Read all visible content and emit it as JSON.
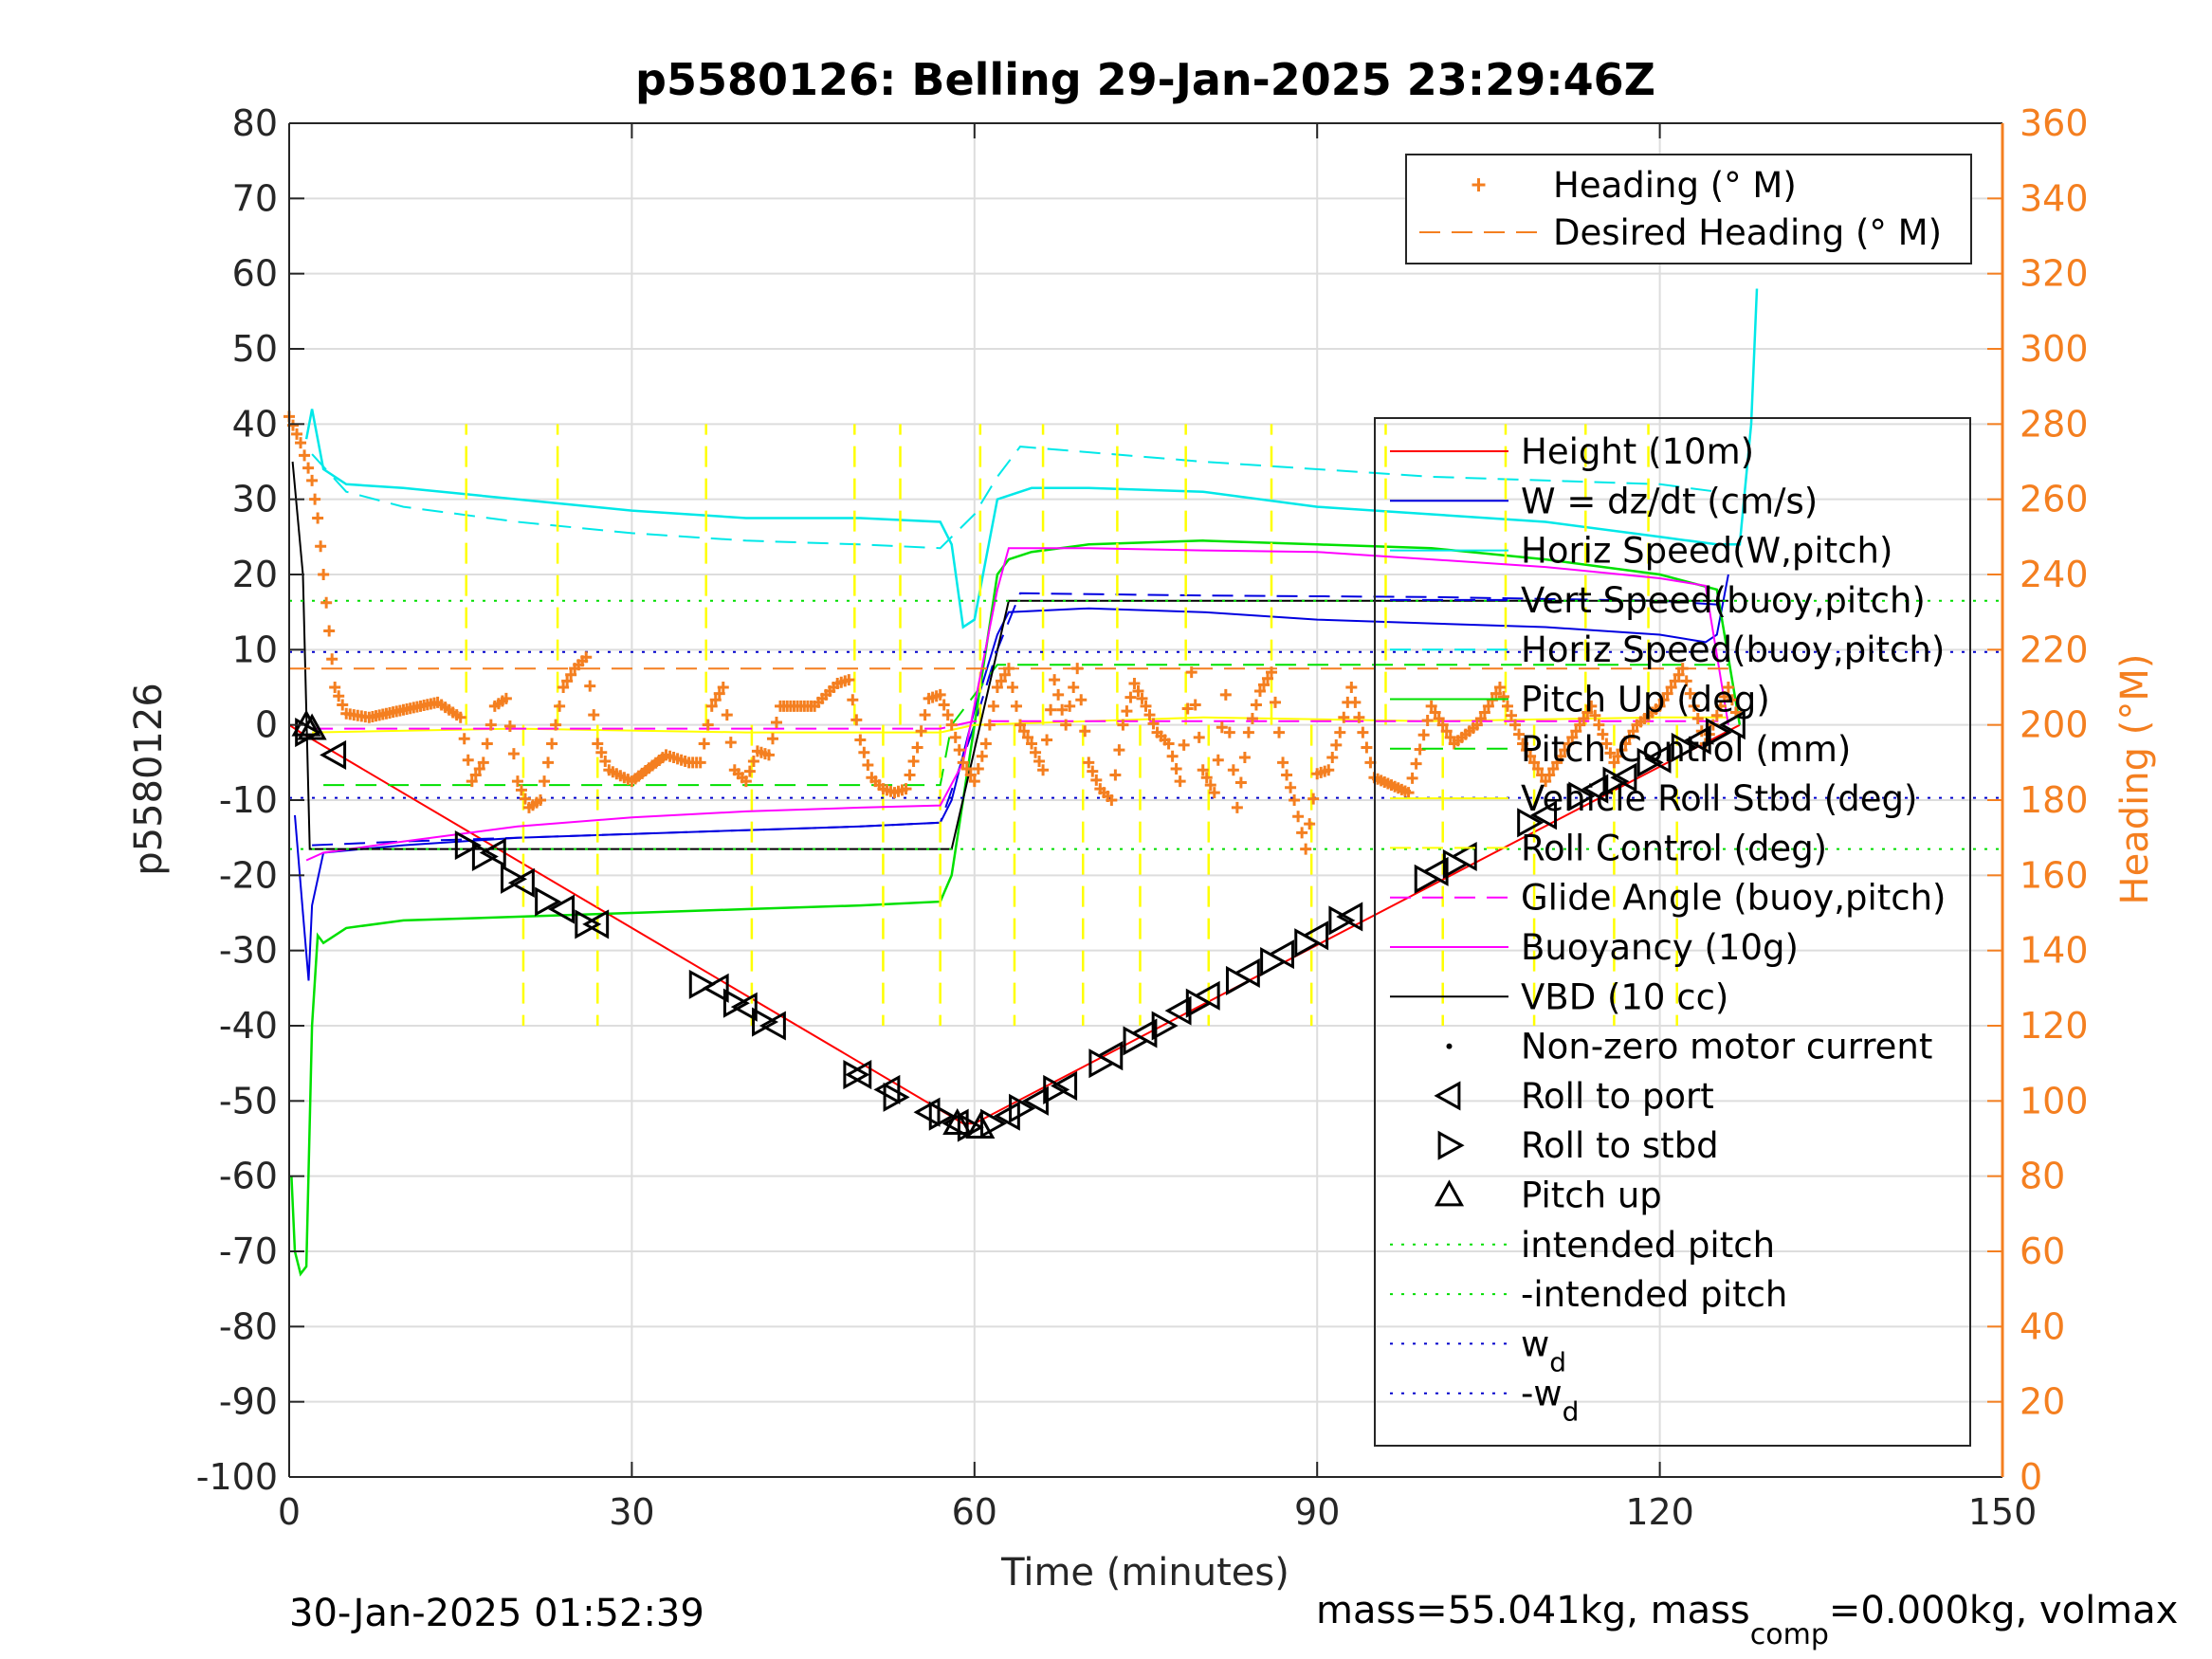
{
  "figure": {
    "title": "p5580126: Belling 29-Jan-2025 23:29:46Z",
    "footer_left": "30-Jan-2025 01:52:39",
    "footer_right": {
      "part1": "mass=55.041kg, mass",
      "sub": "comp",
      "part2": "=0.000kg, volmax"
    }
  },
  "colors": {
    "heading": "#f47f20",
    "height": "#ff0000",
    "w": "#0000e0",
    "horiz_speed": "#00e8e8",
    "pitch_up": "#00e000",
    "roll": "#ffff00",
    "glide": "#ff00ff",
    "vbd": "#000000",
    "intended_pitch": "#00dd00",
    "wd": "#0000cc",
    "grid": "#dddddd",
    "axis": "#262626"
  },
  "chart_data": {
    "type": "line",
    "title": "p5580126: Belling 29-Jan-2025 23:29:46Z",
    "xlabel": "Time (minutes)",
    "ylabel": "p5580126",
    "y2label": "Heading (°M)",
    "xlim": [
      0,
      150
    ],
    "ylim": [
      -100,
      80
    ],
    "y2lim": [
      0,
      360
    ],
    "xticks": [
      0,
      30,
      60,
      90,
      120,
      150
    ],
    "yticks": [
      -100,
      -90,
      -80,
      -70,
      -60,
      -50,
      -40,
      -30,
      -20,
      -10,
      0,
      10,
      20,
      30,
      40,
      50,
      60,
      70,
      80
    ],
    "y2ticks": [
      0,
      20,
      40,
      60,
      80,
      100,
      120,
      140,
      160,
      180,
      200,
      220,
      240,
      260,
      280,
      300,
      320,
      340,
      360
    ],
    "grid": true,
    "legend_top": {
      "position": "top-right",
      "entries": [
        {
          "label": "Heading (° M)",
          "style": "plus",
          "color": "#f47f20"
        },
        {
          "label": "Desired Heading (° M)",
          "style": "dashed",
          "color": "#f47f20"
        }
      ]
    },
    "legend_main": {
      "position": "right",
      "entries": [
        {
          "label": "Height (10m)",
          "style": "solid",
          "color": "#ff0000"
        },
        {
          "label": "W = dz/dt (cm/s)",
          "style": "solid",
          "color": "#0000e0"
        },
        {
          "label": "Horiz Speed(W,pitch)",
          "style": "solid",
          "color": "#00e8e8"
        },
        {
          "label": "Vert Speed(buoy,pitch)",
          "style": "dashed",
          "color": "#0000e0"
        },
        {
          "label": "Horiz Speed(buoy,pitch)",
          "style": "dashed",
          "color": "#00e8e8"
        },
        {
          "label": "Pitch Up (deg)",
          "style": "solid",
          "color": "#00e000"
        },
        {
          "label": "Pitch Control (mm)",
          "style": "dashed",
          "color": "#00e000"
        },
        {
          "label": "Vehicle Roll Stbd (deg)",
          "style": "solid",
          "color": "#ffff00"
        },
        {
          "label": "Roll Control (deg)",
          "style": "dashed",
          "color": "#ffff00"
        },
        {
          "label": "Glide Angle (buoy,pitch)",
          "style": "dashed",
          "color": "#ff00ff"
        },
        {
          "label": "Buoyancy (10g)",
          "style": "solid",
          "color": "#ff00ff"
        },
        {
          "label": "VBD (10 cc)",
          "style": "solid",
          "color": "#000000"
        },
        {
          "label": "Non-zero motor current",
          "style": "dot",
          "color": "#000000"
        },
        {
          "label": "Roll to port",
          "style": "tri-left",
          "color": "#000000"
        },
        {
          "label": "Roll to stbd",
          "style": "tri-right",
          "color": "#000000"
        },
        {
          "label": "Pitch up",
          "style": "tri-up",
          "color": "#000000"
        },
        {
          "label": "intended pitch",
          "style": "dotted",
          "color": "#00dd00"
        },
        {
          "label": "-intended pitch",
          "style": "dotted",
          "color": "#00dd00"
        },
        {
          "label": "w",
          "sub": "d",
          "style": "dotted",
          "color": "#0000cc"
        },
        {
          "label": "-w",
          "sub": "d",
          "style": "dotted",
          "color": "#0000cc"
        }
      ]
    },
    "series": [
      {
        "name": "Height (10m)",
        "x": [
          0,
          1,
          59,
          60,
          127
        ],
        "y": [
          0,
          -1,
          -53,
          -53,
          0
        ]
      },
      {
        "name": "W = dz/dt (cm/s)",
        "x": [
          0.5,
          1.2,
          1.7,
          2.0,
          3,
          10,
          20,
          30,
          40,
          50,
          57,
          58,
          60,
          62,
          63,
          70,
          80,
          90,
          100,
          110,
          120,
          124,
          125,
          126
        ],
        "y": [
          -12,
          -25,
          -34,
          -24,
          -17,
          -16,
          -15,
          -14.5,
          -14,
          -13.5,
          -13,
          -10,
          2,
          12,
          15,
          15.5,
          15,
          14,
          13.5,
          13,
          12,
          11,
          12,
          20
        ]
      },
      {
        "name": "Horiz Speed(W,pitch)",
        "x": [
          1.5,
          2,
          3,
          5,
          10,
          20,
          30,
          40,
          50,
          57,
          58,
          59,
          60,
          61,
          62,
          65,
          70,
          80,
          90,
          100,
          110,
          120,
          125,
          127,
          128,
          128.5
        ],
        "y": [
          38,
          42,
          34,
          32,
          31.5,
          30,
          28.5,
          27.5,
          27.5,
          27,
          24,
          13,
          14,
          22,
          30,
          31.5,
          31.5,
          31,
          29,
          28,
          27,
          25,
          24,
          24,
          40,
          58
        ]
      },
      {
        "name": "Vert Speed(buoy,pitch)",
        "x": [
          2,
          10,
          30,
          50,
          57,
          60,
          62,
          64,
          80,
          100,
          120,
          125
        ],
        "y": [
          -16,
          -15.5,
          -14.5,
          -13.5,
          -13,
          0,
          10,
          17.5,
          17.2,
          17,
          16.5,
          16
        ]
      },
      {
        "name": "Horiz Speed(buoy,pitch)",
        "x": [
          2,
          5,
          10,
          20,
          30,
          40,
          50,
          57,
          60,
          62,
          64,
          80,
          100,
          120,
          125
        ],
        "y": [
          36,
          31,
          29,
          27,
          25.5,
          24.5,
          24,
          23.5,
          28,
          33,
          37,
          35,
          33,
          32,
          31
        ]
      },
      {
        "name": "Pitch Up (deg)",
        "x": [
          0.2,
          0.5,
          1,
          1.5,
          2,
          2.5,
          3,
          5,
          10,
          20,
          30,
          40,
          50,
          57,
          58,
          60,
          62,
          63,
          65,
          70,
          80,
          90,
          100,
          110,
          120,
          125,
          127
        ],
        "y": [
          -60,
          -70,
          -73,
          -72,
          -40,
          -28,
          -29,
          -27,
          -26,
          -25.5,
          -25,
          -24.5,
          -24,
          -23.5,
          -20,
          0,
          20,
          22,
          23,
          24,
          24.5,
          24,
          23.5,
          22,
          20,
          18,
          0
        ]
      },
      {
        "name": "Pitch Control (mm)",
        "x": [
          3,
          57,
          58,
          62,
          126
        ],
        "y": [
          -8,
          -8,
          0,
          8,
          8
        ]
      },
      {
        "name": "Vehicle Roll Stbd (deg)",
        "x": [
          2,
          20,
          40,
          57,
          60,
          80,
          100,
          120,
          126
        ],
        "y": [
          -1,
          -0.5,
          -1,
          -1,
          0,
          1,
          0.5,
          1,
          1
        ]
      },
      {
        "name": "Roll Control (deg)",
        "x": [
          15.5,
          20.5,
          23.5,
          27,
          36.5,
          40.5,
          49.5,
          52,
          53.5,
          57,
          60.5,
          63.5,
          66,
          69.5,
          72.5,
          74.5,
          78.5,
          80.5,
          86,
          89.5,
          96,
          101,
          106.5,
          109,
          113.5,
          116,
          119,
          121.5
        ],
        "y": [
          40,
          -40,
          40,
          -40,
          40,
          -40,
          40,
          -40,
          40,
          -40,
          40,
          -40,
          40,
          -40,
          40,
          -40,
          40,
          -40,
          40,
          -40,
          40,
          -40,
          40,
          -40,
          40,
          -40,
          40,
          -40
        ]
      },
      {
        "name": "Glide Angle (buoy,pitch)",
        "x": [
          2,
          57,
          60,
          126
        ],
        "y": [
          -0.5,
          -0.5,
          0.5,
          0.5
        ]
      },
      {
        "name": "Buoyancy (10g)",
        "x": [
          1.5,
          3,
          10,
          20,
          30,
          40,
          50,
          57,
          59,
          62,
          63,
          70,
          80,
          90,
          100,
          110,
          120,
          124,
          126
        ],
        "y": [
          -18,
          -17,
          -15.5,
          -13.5,
          -12.3,
          -11.5,
          -11,
          -10.7,
          -5,
          18,
          23.5,
          23.5,
          23.2,
          23,
          22,
          21,
          19.5,
          18.5,
          0
        ]
      },
      {
        "name": "VBD (10 cc)",
        "x": [
          0.3,
          1.2,
          1.8,
          57.5,
          58,
          63,
          126
        ],
        "y": [
          35,
          20,
          -16.5,
          -16.5,
          -16.5,
          16.5,
          16.5
        ]
      },
      {
        "name": "intended pitch",
        "x": [
          0,
          150
        ],
        "y": [
          16.5,
          16.5
        ]
      },
      {
        "name": "-intended pitch",
        "x": [
          0,
          150
        ],
        "y": [
          -16.5,
          -16.5
        ]
      },
      {
        "name": "wd",
        "x": [
          0,
          150
        ],
        "y": [
          9.7,
          9.7
        ]
      },
      {
        "name": "-wd",
        "x": [
          0,
          150
        ],
        "y": [
          -9.7,
          -9.7
        ]
      },
      {
        "name": "Desired Heading (° M)",
        "axis": "right",
        "x": [
          0,
          126
        ],
        "y": [
          215,
          215
        ]
      },
      {
        "name": "Heading (° M)",
        "axis": "right",
        "x": [
          0,
          1,
          2,
          2.5,
          3,
          3.5,
          4,
          5,
          7,
          10,
          13,
          15,
          16,
          17,
          18,
          19,
          20,
          21,
          22,
          23,
          24,
          25,
          26,
          27,
          28,
          30,
          33,
          35,
          36,
          37,
          38,
          39,
          40,
          41,
          42,
          43,
          46,
          48,
          49,
          50,
          51,
          52,
          53,
          54,
          55,
          56,
          57,
          58,
          59,
          60,
          61,
          62,
          63,
          64,
          65,
          66,
          67,
          68,
          69,
          70,
          71,
          72,
          73,
          74,
          75,
          76,
          77,
          78,
          79,
          80,
          81,
          82,
          83,
          84,
          85,
          86,
          87,
          88,
          89,
          90,
          91,
          92,
          93,
          95,
          98,
          100,
          102,
          104,
          106,
          108,
          110,
          112,
          114,
          116,
          118,
          120,
          122,
          124,
          126,
          127
        ],
        "y": [
          282,
          275,
          265,
          255,
          240,
          225,
          210,
          203,
          202,
          204,
          206,
          202,
          185,
          190,
          205,
          207,
          185,
          178,
          180,
          195,
          210,
          215,
          218,
          195,
          188,
          185,
          192,
          190,
          190,
          205,
          210,
          188,
          185,
          193,
          192,
          205,
          205,
          211,
          212,
          196,
          186,
          183,
          182,
          183,
          194,
          207,
          208,
          200,
          190,
          185,
          195,
          210,
          215,
          200,
          195,
          188,
          212,
          200,
          215,
          190,
          183,
          180,
          200,
          211,
          205,
          198,
          195,
          185,
          214,
          188,
          182,
          208,
          178,
          198,
          209,
          214,
          190,
          180,
          167,
          187,
          188,
          198,
          210,
          186,
          182,
          205,
          195,
          200,
          210,
          195,
          185,
          195,
          205,
          190,
          200,
          205,
          215,
          195,
          210,
          200
        ]
      }
    ],
    "markers": {
      "roll_to_port": [
        [
          4,
          -4
        ],
        [
          18,
          -17
        ],
        [
          20.5,
          -21
        ],
        [
          24,
          -24.5
        ],
        [
          27,
          -26.5
        ],
        [
          37.5,
          -35
        ],
        [
          40,
          -37.5
        ],
        [
          42.5,
          -40
        ],
        [
          50,
          -46.5
        ],
        [
          52.5,
          -48.5
        ],
        [
          56,
          -51.5
        ],
        [
          58.5,
          -53
        ],
        [
          63,
          -52
        ],
        [
          65.5,
          -50
        ],
        [
          68,
          -48
        ],
        [
          72,
          -44
        ],
        [
          75,
          -41
        ],
        [
          78,
          -38
        ],
        [
          80.5,
          -36
        ],
        [
          84,
          -33
        ],
        [
          87,
          -30.5
        ],
        [
          90,
          -28
        ],
        [
          93,
          -25.5
        ],
        [
          100.5,
          -19.5
        ],
        [
          103,
          -17.5
        ],
        [
          110,
          -12
        ],
        [
          114.5,
          -8.5
        ],
        [
          117,
          -7
        ],
        [
          120,
          -4.5
        ],
        [
          123.5,
          -2
        ],
        [
          126.5,
          0
        ]
      ],
      "roll_to_stbd": [
        [
          1.5,
          -1
        ],
        [
          15.5,
          -16
        ],
        [
          17,
          -17.5
        ],
        [
          19.5,
          -20.5
        ],
        [
          22.5,
          -23.5
        ],
        [
          26,
          -26.5
        ],
        [
          36,
          -34.5
        ],
        [
          39,
          -37
        ],
        [
          41.5,
          -39.5
        ],
        [
          49.5,
          -46.5
        ],
        [
          53,
          -49.5
        ],
        [
          57,
          -52
        ],
        [
          59.5,
          -53.5
        ],
        [
          61.5,
          -53
        ],
        [
          64,
          -51
        ],
        [
          67,
          -48.5
        ],
        [
          71,
          -45
        ],
        [
          74,
          -42
        ],
        [
          76.5,
          -40
        ],
        [
          79.5,
          -37
        ],
        [
          83,
          -34
        ],
        [
          86,
          -31.5
        ],
        [
          89,
          -29
        ],
        [
          92,
          -26
        ],
        [
          99.5,
          -20.5
        ],
        [
          102,
          -18.5
        ],
        [
          108.5,
          -13
        ],
        [
          113,
          -9.5
        ],
        [
          116,
          -7.5
        ],
        [
          119,
          -5
        ],
        [
          122,
          -3
        ],
        [
          125,
          -1
        ]
      ],
      "pitch_up": [
        [
          1.5,
          0
        ],
        [
          2,
          -0.5
        ],
        [
          58.5,
          -53
        ],
        [
          60.5,
          -53.5
        ]
      ]
    }
  }
}
